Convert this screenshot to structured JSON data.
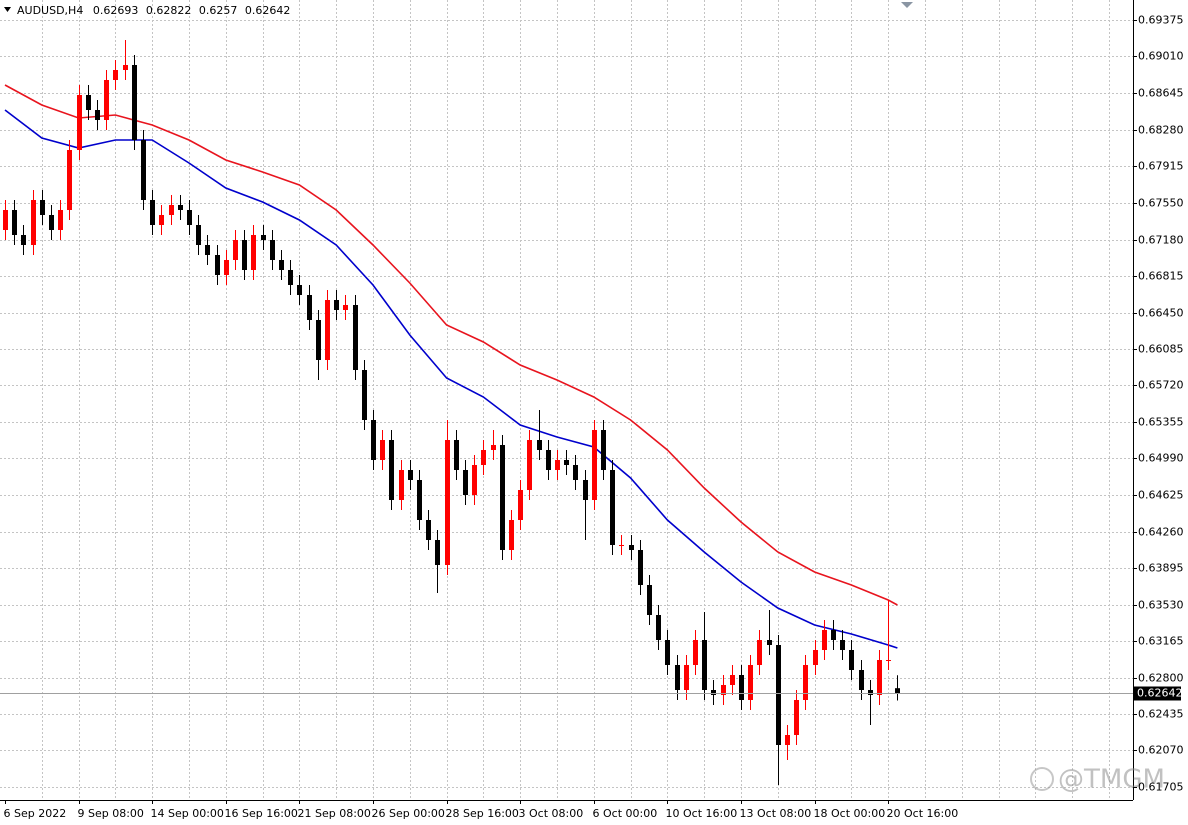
{
  "chart_data": {
    "type": "candlestick",
    "title": "AUDUSD,H4",
    "watermark": "@TMGM",
    "up_color": "#ff0000",
    "down_color": "#000000",
    "grid": true,
    "ylim": [
      0.61575,
      0.69575
    ],
    "yticks": [
      0.69375,
      {
        "value": 0.6901,
        "label": "0.69010"
      },
      0.68645,
      {
        "value": 0.6828,
        "label": "0.68280"
      },
      0.67915,
      {
        "value": 0.6755,
        "label": "0.67550"
      },
      {
        "value": 0.6718,
        "label": "0.67180"
      },
      0.66815,
      {
        "value": 0.6645,
        "label": "0.66450"
      },
      0.66085,
      {
        "value": 0.6572,
        "label": "0.65720"
      },
      0.65355,
      {
        "value": 0.6499,
        "label": "0.64990"
      },
      0.64625,
      {
        "value": 0.6426,
        "label": "0.64260"
      },
      0.63895,
      {
        "value": 0.6353,
        "label": "0.63530"
      },
      0.63165,
      {
        "value": 0.628,
        "label": "0.62800"
      },
      0.62435,
      {
        "value": 0.6207,
        "label": "0.62070"
      },
      0.61705
    ],
    "categories": [
      "6 Sep 2022",
      null,
      null,
      null,
      null,
      null,
      null,
      null,
      "9 Sep 08:00",
      null,
      null,
      null,
      null,
      null,
      null,
      null,
      "14 Sep 00:00",
      null,
      null,
      null,
      null,
      null,
      null,
      null,
      "16 Sep 16:00",
      null,
      null,
      null,
      null,
      null,
      null,
      null,
      "21 Sep 08:00",
      null,
      null,
      null,
      null,
      null,
      null,
      null,
      "26 Sep 00:00",
      null,
      null,
      null,
      null,
      null,
      null,
      null,
      "28 Sep 16:00",
      null,
      null,
      null,
      null,
      null,
      null,
      null,
      "3 Oct 08:00",
      null,
      null,
      null,
      null,
      null,
      null,
      null,
      "6 Oct 00:00",
      null,
      null,
      null,
      null,
      null,
      null,
      null,
      "10 Oct 16:00",
      null,
      null,
      null,
      null,
      null,
      null,
      null,
      "13 Oct 08:00",
      null,
      null,
      null,
      null,
      null,
      null,
      null,
      "18 Oct 00:00",
      null,
      null,
      null,
      null,
      null,
      null,
      null,
      "20 Oct 16:00",
      null
    ],
    "open": [
      0.67275,
      0.67475,
      0.67225,
      0.67125,
      0.67575,
      0.67425,
      0.67275,
      0.67475,
      0.68075,
      0.68625,
      0.68475,
      0.68375,
      0.68775,
      0.68875,
      0.68925,
      0.68175,
      0.67575,
      0.67325,
      0.67425,
      0.67525,
      0.67475,
      0.67325,
      0.67125,
      0.67025,
      0.66825,
      0.66975,
      0.67175,
      0.66875,
      0.67225,
      0.67175,
      0.66975,
      0.66875,
      0.66725,
      0.66625,
      0.66375,
      0.65975,
      0.66575,
      0.66475,
      0.66525,
      0.65875,
      0.65375,
      0.64975,
      0.65175,
      0.64575,
      0.64875,
      0.64775,
      0.64375,
      0.64175,
      0.63925,
      0.65175,
      0.64875,
      0.64625,
      0.64925,
      0.65075,
      0.65125,
      0.64075,
      0.64375,
      0.64675,
      0.65175,
      0.65075,
      0.64875,
      0.64975,
      0.64925,
      0.64775,
      0.64575,
      0.65275,
      0.64875,
      0.64125,
      0.64125,
      0.64075,
      0.63725,
      0.63425,
      0.63175,
      0.62925,
      0.62675,
      0.62925,
      0.63175,
      0.62675,
      0.62625,
      0.62725,
      0.62825,
      0.62575,
      0.62925,
      0.63175,
      0.63125,
      0.62125,
      0.62225,
      0.62575,
      0.62925,
      0.63075,
      0.63275,
      0.63175,
      0.63075,
      0.62875,
      0.62675,
      0.62625,
      0.62975,
      0.62693
    ],
    "high": [
      0.67575,
      0.67575,
      0.67325,
      0.67675,
      0.67675,
      0.67525,
      0.67575,
      0.68175,
      0.68725,
      0.68725,
      0.68575,
      0.68875,
      0.68975,
      0.69175,
      0.69025,
      0.68275,
      0.67675,
      0.67525,
      0.67625,
      0.67625,
      0.67575,
      0.67425,
      0.67225,
      0.67125,
      0.67075,
      0.67275,
      0.67275,
      0.67325,
      0.67325,
      0.67275,
      0.67075,
      0.66975,
      0.66825,
      0.66725,
      0.66475,
      0.66675,
      0.66675,
      0.66625,
      0.66625,
      0.65975,
      0.65475,
      0.65275,
      0.65275,
      0.64975,
      0.64975,
      0.64875,
      0.64475,
      0.64275,
      0.65375,
      0.65275,
      0.64975,
      0.65025,
      0.65175,
      0.65275,
      0.65225,
      0.64475,
      0.64775,
      0.65275,
      0.65475,
      0.65175,
      0.65075,
      0.65075,
      0.65025,
      0.64875,
      0.65375,
      0.65375,
      0.64975,
      0.64225,
      0.64225,
      0.64175,
      0.63825,
      0.63525,
      0.63275,
      0.63025,
      0.63025,
      0.63275,
      0.63455,
      0.62775,
      0.62825,
      0.62925,
      0.62925,
      0.63025,
      0.63275,
      0.63475,
      0.63225,
      0.62325,
      0.62675,
      0.63025,
      0.63175,
      0.63375,
      0.63375,
      0.63275,
      0.63175,
      0.62975,
      0.62775,
      0.63075,
      0.63575,
      0.62822
    ],
    "low": [
      0.67175,
      0.67125,
      0.67025,
      0.67025,
      0.67325,
      0.67175,
      0.67175,
      0.67375,
      0.67975,
      0.68375,
      0.68275,
      0.68275,
      0.68675,
      0.68775,
      0.68075,
      0.67475,
      0.67225,
      0.67225,
      0.67325,
      0.67375,
      0.67225,
      0.67025,
      0.66925,
      0.66725,
      0.66725,
      0.66875,
      0.66775,
      0.66775,
      0.67075,
      0.66875,
      0.66775,
      0.66625,
      0.66525,
      0.66275,
      0.65775,
      0.65875,
      0.66375,
      0.66375,
      0.65775,
      0.65275,
      0.64875,
      0.64875,
      0.64475,
      0.64475,
      0.64675,
      0.64275,
      0.64075,
      0.63645,
      0.63825,
      0.64775,
      0.64525,
      0.64525,
      0.64825,
      0.64975,
      0.63975,
      0.63975,
      0.64275,
      0.64575,
      0.64975,
      0.64775,
      0.64775,
      0.64825,
      0.64675,
      0.64175,
      0.64475,
      0.64775,
      0.64025,
      0.64025,
      0.63975,
      0.63625,
      0.63325,
      0.63075,
      0.62825,
      0.62575,
      0.62575,
      0.62825,
      0.62575,
      0.62525,
      0.62525,
      0.62625,
      0.62475,
      0.62475,
      0.62825,
      0.63025,
      0.61725,
      0.61975,
      0.62125,
      0.62475,
      0.62825,
      0.62975,
      0.63075,
      0.62975,
      0.62775,
      0.62575,
      0.62325,
      0.62525,
      0.62875,
      0.6257
    ],
    "close": [
      0.67475,
      0.67225,
      0.67125,
      0.67575,
      0.67425,
      0.67275,
      0.67475,
      0.68075,
      0.68625,
      0.68475,
      0.68375,
      0.68775,
      0.68875,
      0.68925,
      0.68175,
      0.67575,
      0.67325,
      0.67425,
      0.67525,
      0.67475,
      0.67325,
      0.67125,
      0.67025,
      0.66825,
      0.66975,
      0.67175,
      0.66875,
      0.67225,
      0.67175,
      0.66975,
      0.66875,
      0.66725,
      0.66625,
      0.66375,
      0.65975,
      0.66575,
      0.66475,
      0.66525,
      0.65875,
      0.65375,
      0.64975,
      0.65175,
      0.64575,
      0.64875,
      0.64775,
      0.64375,
      0.64175,
      0.63925,
      0.65175,
      0.64875,
      0.64625,
      0.64925,
      0.65075,
      0.65125,
      0.64075,
      0.64375,
      0.64675,
      0.65175,
      0.65075,
      0.64875,
      0.64975,
      0.64925,
      0.64775,
      0.64575,
      0.65275,
      0.64875,
      0.64125,
      0.64125,
      0.64075,
      0.63725,
      0.63425,
      0.63175,
      0.62925,
      0.62675,
      0.62925,
      0.63175,
      0.62675,
      0.62625,
      0.62725,
      0.62825,
      0.62575,
      0.62925,
      0.63175,
      0.63125,
      0.62125,
      0.62225,
      0.62575,
      0.62925,
      0.63075,
      0.63275,
      0.63175,
      0.63075,
      0.62875,
      0.62675,
      0.62625,
      0.62975,
      0.62975,
      0.62642
    ],
    "moving_averages": [
      {
        "color": "#0000cc",
        "x": [
          0,
          4,
          8,
          12,
          16,
          20,
          24,
          28,
          32,
          36,
          40,
          44,
          48,
          52,
          56,
          60,
          64,
          68,
          72,
          76,
          80,
          84,
          88,
          92,
          96,
          97
        ],
        "values": [
          0.68475,
          0.68195,
          0.68095,
          0.68175,
          0.68175,
          0.67945,
          0.67695,
          0.67555,
          0.67375,
          0.67125,
          0.66725,
          0.66225,
          0.65795,
          0.65605,
          0.65325,
          0.65205,
          0.65105,
          0.64795,
          0.64375,
          0.64055,
          0.63755,
          0.63495,
          0.63325,
          0.63235,
          0.63125,
          0.63095
        ]
      },
      {
        "color": "#e8141e",
        "x": [
          0,
          4,
          8,
          12,
          16,
          20,
          24,
          28,
          32,
          36,
          40,
          44,
          48,
          52,
          56,
          60,
          64,
          68,
          72,
          76,
          80,
          84,
          88,
          92,
          96,
          97
        ],
        "values": [
          0.68725,
          0.68525,
          0.68395,
          0.68425,
          0.68325,
          0.68175,
          0.67975,
          0.67855,
          0.67725,
          0.67475,
          0.67125,
          0.66745,
          0.66325,
          0.66155,
          0.65925,
          0.65775,
          0.65605,
          0.65375,
          0.65075,
          0.64695,
          0.64355,
          0.64055,
          0.63855,
          0.63725,
          0.63575,
          0.63525
        ]
      }
    ]
  }
}
